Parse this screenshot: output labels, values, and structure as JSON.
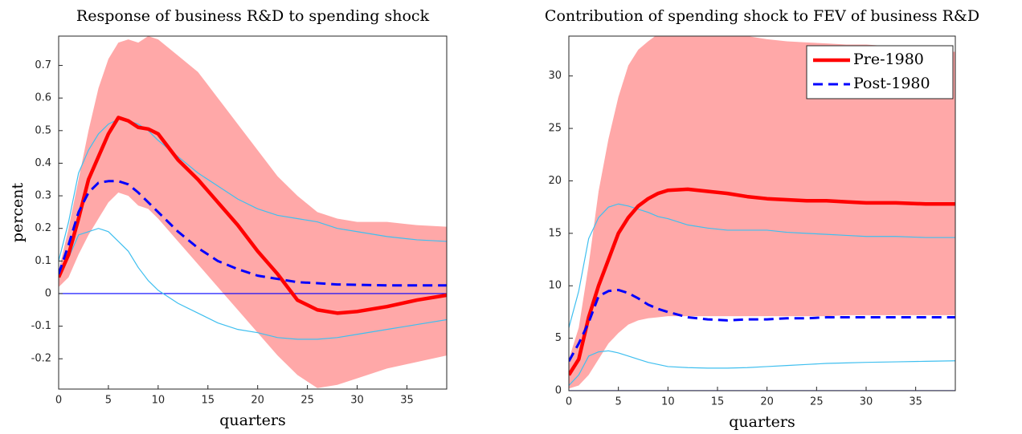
{
  "chart_data": [
    {
      "type": "line",
      "title": "Response of business R&D to spending shock",
      "xlabel": "quarters",
      "ylabel": "percent",
      "x": [
        0,
        1,
        2,
        3,
        4,
        5,
        6,
        7,
        8,
        9,
        10,
        12,
        14,
        16,
        18,
        20,
        22,
        24,
        26,
        28,
        30,
        33,
        36,
        39
      ],
      "xlim": [
        0,
        39
      ],
      "xticks": [
        0,
        5,
        10,
        15,
        20,
        25,
        30,
        35
      ],
      "ylim": [
        -0.293,
        0.79
      ],
      "yticks": [
        -0.2,
        -0.1,
        0,
        0.1,
        0.2,
        0.3,
        0.4,
        0.5,
        0.6,
        0.7
      ],
      "zero_line": "#0000ff",
      "series": [
        {
          "name": "Pre-1980",
          "color": "#ff0000",
          "style": "solid",
          "band_color": "#ffa8a8",
          "band_style": "fill",
          "values": [
            0.05,
            0.12,
            0.23,
            0.35,
            0.42,
            0.49,
            0.54,
            0.53,
            0.51,
            0.505,
            0.49,
            0.41,
            0.35,
            0.28,
            0.21,
            0.13,
            0.06,
            -0.02,
            -0.05,
            -0.06,
            -0.055,
            -0.04,
            -0.02,
            -0.005
          ],
          "upper": [
            0.07,
            0.2,
            0.35,
            0.5,
            0.63,
            0.72,
            0.77,
            0.78,
            0.77,
            0.79,
            0.78,
            0.73,
            0.68,
            0.6,
            0.52,
            0.44,
            0.36,
            0.3,
            0.25,
            0.23,
            0.22,
            0.22,
            0.21,
            0.205
          ],
          "lower": [
            0.02,
            0.05,
            0.12,
            0.18,
            0.23,
            0.28,
            0.31,
            0.3,
            0.27,
            0.26,
            0.23,
            0.16,
            0.09,
            0.02,
            -0.05,
            -0.12,
            -0.19,
            -0.25,
            -0.29,
            -0.28,
            -0.26,
            -0.23,
            -0.21,
            -0.19
          ]
        },
        {
          "name": "Post-1980",
          "color": "#0000ff",
          "style": "dashed",
          "band_color": "#3fbfef",
          "band_style": "lines",
          "values": [
            0.06,
            0.15,
            0.25,
            0.31,
            0.34,
            0.345,
            0.345,
            0.335,
            0.31,
            0.28,
            0.25,
            0.19,
            0.14,
            0.1,
            0.075,
            0.055,
            0.045,
            0.035,
            0.032,
            0.028,
            0.027,
            0.025,
            0.025,
            0.025
          ],
          "upper": [
            0.1,
            0.22,
            0.37,
            0.44,
            0.49,
            0.52,
            0.535,
            0.53,
            0.52,
            0.5,
            0.47,
            0.42,
            0.37,
            0.33,
            0.29,
            0.26,
            0.24,
            0.23,
            0.22,
            0.2,
            0.19,
            0.175,
            0.165,
            0.16
          ],
          "lower": [
            0.06,
            0.11,
            0.18,
            0.19,
            0.2,
            0.19,
            0.16,
            0.13,
            0.08,
            0.04,
            0.01,
            -0.03,
            -0.06,
            -0.09,
            -0.11,
            -0.12,
            -0.135,
            -0.14,
            -0.14,
            -0.135,
            -0.125,
            -0.11,
            -0.095,
            -0.08
          ]
        }
      ]
    },
    {
      "type": "line",
      "title": "Contribution of spending shock to FEV of business R&D",
      "xlabel": "quarters",
      "x": [
        0,
        1,
        2,
        3,
        4,
        5,
        6,
        7,
        8,
        9,
        10,
        12,
        14,
        16,
        18,
        20,
        22,
        24,
        26,
        28,
        30,
        33,
        36,
        39
      ],
      "xlim": [
        0,
        39
      ],
      "xticks": [
        0,
        5,
        10,
        15,
        20,
        25,
        30,
        35
      ],
      "ylim": [
        0,
        33.8
      ],
      "yticks": [
        0,
        5,
        10,
        15,
        20,
        25,
        30
      ],
      "zero_line": "#0000ff",
      "legend": "upper right",
      "series": [
        {
          "name": "Pre-1980",
          "color": "#ff0000",
          "style": "solid",
          "band_color": "#ffa8a8",
          "band_style": "fill",
          "values": [
            1.5,
            3,
            7,
            10,
            12.5,
            15,
            16.5,
            17.6,
            18.3,
            18.8,
            19.1,
            19.2,
            19,
            18.8,
            18.5,
            18.3,
            18.2,
            18.1,
            18.1,
            18,
            17.9,
            17.9,
            17.8,
            17.8
          ],
          "upper": [
            3,
            6,
            12,
            19,
            24,
            28,
            31,
            32.5,
            33.3,
            34,
            34,
            34.3,
            34.3,
            34,
            33.8,
            33.5,
            33.3,
            33.2,
            33.1,
            33,
            33,
            32.8,
            32.5,
            32.3
          ],
          "lower": [
            0.2,
            0.5,
            1.5,
            3,
            4.5,
            5.5,
            6.3,
            6.7,
            6.9,
            7,
            7.1,
            7.1,
            7.1,
            7.1,
            7.1,
            7.1,
            7.1,
            7.1,
            7.1,
            7.2,
            7.2,
            7.2,
            7.2,
            7.2
          ]
        },
        {
          "name": "Post-1980",
          "color": "#0000ff",
          "style": "dashed",
          "band_color": "#3fbfef",
          "band_style": "lines",
          "values": [
            2.8,
            4.5,
            6.5,
            9,
            9.5,
            9.6,
            9.3,
            8.8,
            8.2,
            7.8,
            7.5,
            7,
            6.8,
            6.7,
            6.8,
            6.8,
            6.9,
            6.9,
            7,
            7,
            7,
            7,
            7,
            7
          ],
          "upper": [
            6,
            9.5,
            14.5,
            16.5,
            17.5,
            17.8,
            17.6,
            17.3,
            17,
            16.6,
            16.4,
            15.8,
            15.5,
            15.3,
            15.3,
            15.3,
            15.1,
            15,
            14.9,
            14.8,
            14.7,
            14.7,
            14.6,
            14.6
          ],
          "lower": [
            0.5,
            1.5,
            3.3,
            3.7,
            3.8,
            3.6,
            3.3,
            3,
            2.7,
            2.5,
            2.3,
            2.2,
            2.15,
            2.15,
            2.2,
            2.3,
            2.4,
            2.5,
            2.6,
            2.65,
            2.7,
            2.75,
            2.8,
            2.85
          ]
        }
      ]
    }
  ]
}
